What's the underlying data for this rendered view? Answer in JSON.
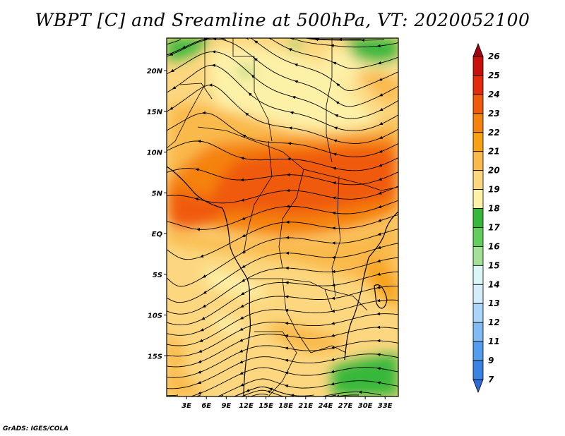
{
  "title": "WBPT [C] and Sreamline at 500hPa, VT: 2020052100",
  "credit": "GrADS: IGES/COLA",
  "map": {
    "variable": "WBPT [C]",
    "overlay": "Streamline",
    "level": "500hPa",
    "valid_time": "2020052100",
    "lon_range": [
      0,
      35
    ],
    "lat_range": [
      -20,
      24
    ],
    "lon_labels": [
      {
        "lon": 3,
        "text": "3E"
      },
      {
        "lon": 6,
        "text": "6E"
      },
      {
        "lon": 9,
        "text": "9E"
      },
      {
        "lon": 12,
        "text": "12E"
      },
      {
        "lon": 15,
        "text": "15E"
      },
      {
        "lon": 18,
        "text": "18E"
      },
      {
        "lon": 21,
        "text": "21E"
      },
      {
        "lon": 24,
        "text": "24E"
      },
      {
        "lon": 27,
        "text": "27E"
      },
      {
        "lon": 30,
        "text": "30E"
      },
      {
        "lon": 33,
        "text": "33E"
      }
    ],
    "lat_labels": [
      {
        "lat": 20,
        "text": "20N"
      },
      {
        "lat": 15,
        "text": "15N"
      },
      {
        "lat": 10,
        "text": "10N"
      },
      {
        "lat": 5,
        "text": "5N"
      },
      {
        "lat": 0,
        "text": "EQ"
      },
      {
        "lat": -5,
        "text": "5S"
      },
      {
        "lat": -10,
        "text": "10S"
      },
      {
        "lat": -15,
        "text": "15S"
      }
    ]
  },
  "colorbar": {
    "labels": [
      "26",
      "25",
      "24",
      "23",
      "22",
      "21",
      "20",
      "19",
      "18",
      "17",
      "16",
      "15",
      "14",
      "13",
      "12",
      "11",
      "9",
      "7"
    ],
    "colors": [
      "#a0000f",
      "#c8100c",
      "#e22c0c",
      "#f05a0c",
      "#f5820f",
      "#f7a114",
      "#fab94b",
      "#fcd77f",
      "#fdf0a7",
      "#38b83a",
      "#63cd5d",
      "#a4e09a",
      "#daf6f6",
      "#d5ecfb",
      "#a8d5f8",
      "#82baf3",
      "#549ced",
      "#3a82e4",
      "#2d6ad8"
    ]
  }
}
